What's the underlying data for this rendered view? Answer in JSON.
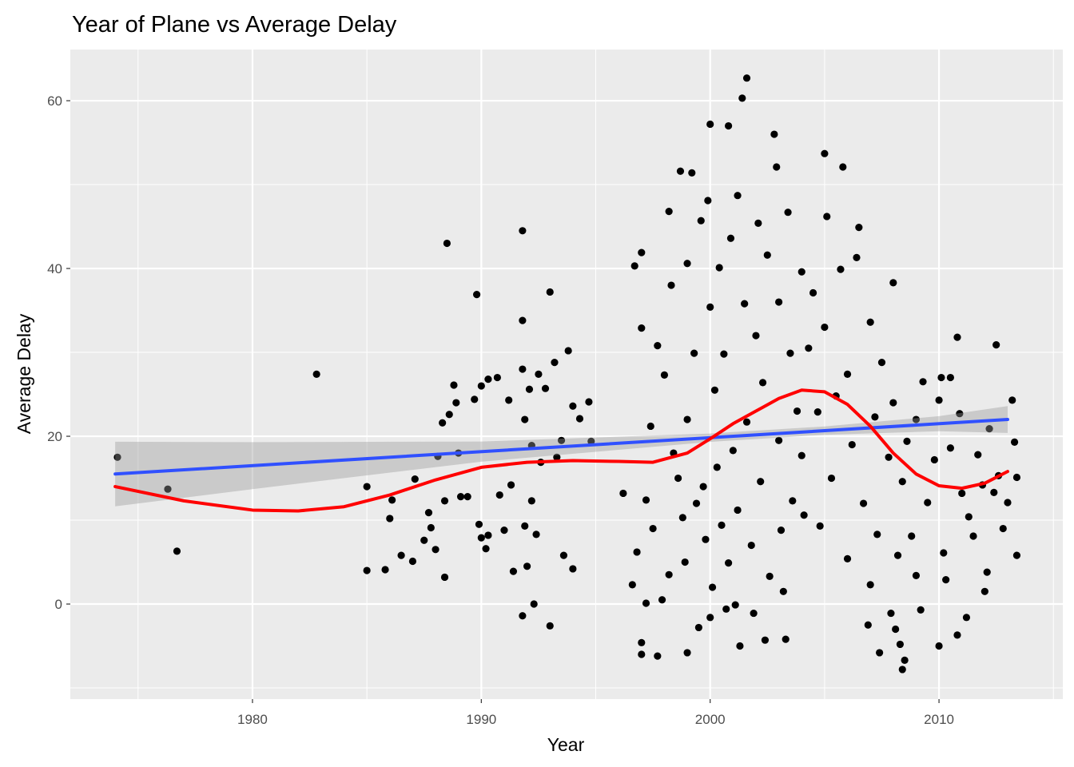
{
  "chart_data": {
    "type": "scatter",
    "title": "Year of Plane vs Average Delay",
    "x_label": "Year",
    "y_label": "Average Delay",
    "xlim": [
      1972.04,
      2015.41
    ],
    "ylim": [
      -11.33,
      66.1
    ],
    "xticks": [
      1980,
      1990,
      2000,
      2010
    ],
    "yticks": [
      0,
      20,
      40,
      60
    ],
    "x_minor_grid": [
      1975,
      1985,
      1995,
      2005,
      2015
    ],
    "y_minor_grid": [
      -10,
      10,
      30,
      50
    ],
    "grid": true,
    "points": {
      "color": "#000000",
      "x": [
        1974.1,
        1976.3,
        1976.7,
        1982.8,
        1985,
        1985,
        1985.8,
        1986,
        1986.1,
        1986.5,
        1987,
        1987.1,
        1987.5,
        1987.7,
        1987.8,
        1988,
        1988.1,
        1988.3,
        1988.4,
        1988.4,
        1988.5,
        1988.6,
        1988.8,
        1988.9,
        1989,
        1989.1,
        1989.4,
        1989.7,
        1989.8,
        1989.9,
        1990,
        1990,
        1990.2,
        1990.3,
        1990.3,
        1990.7,
        1990.8,
        1991,
        1991.2,
        1991.3,
        1991.4,
        1991.8,
        1991.8,
        1991.8,
        1991.8,
        1991.9,
        1991.9,
        1992,
        1992.1,
        1992.2,
        1992.2,
        1992.3,
        1992.4,
        1992.5,
        1992.6,
        1992.8,
        1993,
        1993,
        1993.2,
        1993.3,
        1993.5,
        1993.6,
        1993.8,
        1994,
        1994,
        1994.3,
        1994.7,
        1994.8,
        1996.2,
        1996.6,
        1996.7,
        1996.8,
        1997,
        1997,
        1997,
        1997,
        1997.2,
        1997.2,
        1997.4,
        1997.5,
        1997.7,
        1997.7,
        1997.9,
        1998,
        1998.2,
        1998.2,
        1998.3,
        1998.4,
        1998.6,
        1998.7,
        1998.8,
        1998.9,
        1999,
        1999,
        1999,
        1999.2,
        1999.3,
        1999.4,
        1999.5,
        1999.6,
        1999.7,
        1999.8,
        1999.9,
        2000,
        2000,
        2000,
        2000.1,
        2000.2,
        2000.3,
        2000.4,
        2000.5,
        2000.6,
        2000.7,
        2000.8,
        2000.8,
        2000.9,
        2001,
        2001.1,
        2001.2,
        2001.2,
        2001.3,
        2001.4,
        2001.5,
        2001.6,
        2001.6,
        2001.8,
        2001.9,
        2002,
        2002.1,
        2002.2,
        2002.3,
        2002.4,
        2002.5,
        2002.6,
        2002.8,
        2002.9,
        2003,
        2003,
        2003.1,
        2003.2,
        2003.3,
        2003.4,
        2003.5,
        2003.6,
        2003.8,
        2004,
        2004,
        2004.1,
        2004.3,
        2004.5,
        2004.7,
        2004.8,
        2005,
        2005,
        2005.1,
        2005.3,
        2005.5,
        2005.7,
        2005.8,
        2006,
        2006,
        2006.2,
        2006.4,
        2006.5,
        2006.7,
        2006.9,
        2007,
        2007,
        2007.2,
        2007.3,
        2007.4,
        2007.5,
        2007.8,
        2007.9,
        2008,
        2008,
        2008.1,
        2008.2,
        2008.3,
        2008.4,
        2008.4,
        2008.5,
        2008.6,
        2008.8,
        2009,
        2009,
        2009.2,
        2009.3,
        2009.5,
        2009.8,
        2010,
        2010,
        2010.1,
        2010.2,
        2010.3,
        2010.5,
        2010.5,
        2010.8,
        2010.8,
        2010.9,
        2011,
        2011.2,
        2011.3,
        2011.5,
        2011.7,
        2011.9,
        2012,
        2012.1,
        2012.2,
        2012.4,
        2012.5,
        2012.6,
        2012.8,
        2013,
        2013.2,
        2013.3,
        2013.4,
        2013.4
      ],
      "y": [
        17.5,
        13.7,
        6.3,
        27.4,
        4,
        14,
        4.1,
        10.2,
        12.4,
        5.8,
        5.1,
        14.9,
        7.6,
        10.9,
        9.1,
        6.5,
        17.6,
        21.6,
        12.3,
        3.2,
        43,
        22.6,
        26.1,
        24,
        18,
        12.8,
        12.8,
        24.4,
        36.9,
        9.5,
        7.9,
        26,
        6.6,
        26.8,
        8.2,
        27,
        13,
        8.8,
        24.3,
        14.2,
        3.9,
        -1.4,
        44.5,
        33.8,
        28,
        22,
        9.3,
        4.5,
        25.6,
        12.3,
        18.9,
        0,
        8.3,
        27.4,
        16.9,
        25.7,
        37.2,
        -2.6,
        28.8,
        17.5,
        19.5,
        5.8,
        30.2,
        4.2,
        23.6,
        22.1,
        24.1,
        19.4,
        13.2,
        2.3,
        40.3,
        6.2,
        -6,
        -4.6,
        41.9,
        32.9,
        12.4,
        0.1,
        21.2,
        9,
        -6.2,
        30.8,
        0.5,
        27.3,
        46.8,
        3.5,
        38,
        18,
        15,
        51.6,
        10.3,
        5,
        -5.8,
        40.6,
        22,
        51.4,
        29.9,
        12,
        -2.8,
        45.7,
        14,
        7.7,
        48.1,
        57.2,
        -1.6,
        35.4,
        2,
        25.5,
        16.3,
        40.1,
        9.4,
        29.8,
        -0.6,
        57,
        4.9,
        43.6,
        18.3,
        -0.1,
        48.7,
        11.2,
        -5,
        60.3,
        35.8,
        62.7,
        21.7,
        7,
        -1.1,
        32,
        45.4,
        14.6,
        26.4,
        -4.3,
        41.6,
        3.3,
        56,
        52.1,
        19.5,
        36,
        8.8,
        1.5,
        -4.2,
        46.7,
        29.9,
        12.3,
        23,
        39.6,
        17.7,
        10.6,
        30.5,
        37.1,
        22.9,
        9.3,
        53.7,
        33,
        46.2,
        15,
        24.8,
        39.9,
        52.1,
        5.4,
        27.4,
        19,
        41.3,
        44.9,
        12,
        -2.5,
        33.6,
        2.3,
        22.3,
        8.3,
        -5.8,
        28.8,
        17.5,
        -1.1,
        38.3,
        24,
        -3,
        5.8,
        -4.8,
        -7.8,
        14.6,
        -6.7,
        19.4,
        8.1,
        22,
        3.4,
        -0.7,
        26.5,
        12.1,
        17.2,
        24.3,
        -5,
        27,
        6.1,
        2.9,
        18.6,
        27,
        31.8,
        -3.7,
        22.7,
        13.2,
        -1.6,
        10.4,
        8.1,
        17.8,
        14.2,
        1.5,
        3.8,
        20.9,
        13.3,
        30.9,
        15.3,
        9,
        12.1,
        24.3,
        19.3,
        5.8,
        15.1
      ]
    },
    "band": {
      "color": "#999999",
      "x": [
        1974,
        1980,
        1990,
        2000,
        2005,
        2010,
        2013
      ],
      "lower": [
        11.65,
        13.7,
        16.97,
        19.33,
        20.17,
        20.6,
        20.4
      ],
      "upper": [
        19.35,
        19.3,
        19.37,
        20.33,
        21.17,
        22.4,
        23.6
      ]
    },
    "linear_fit": {
      "color": "#3050ff",
      "x": [
        1974,
        2013
      ],
      "y": [
        15.5,
        22
      ]
    },
    "smooth": {
      "color": "#ff0000",
      "x": [
        1974,
        1977,
        1980,
        1982,
        1984,
        1986,
        1988,
        1990,
        1992,
        1994,
        1996,
        1997.5,
        1999,
        2000,
        2001,
        2002,
        2003,
        2004,
        2005,
        2006,
        2007,
        2008,
        2009,
        2010,
        2011,
        2012,
        2013
      ],
      "y": [
        14,
        12.3,
        11.2,
        11.1,
        11.6,
        13,
        14.8,
        16.3,
        16.9,
        17.1,
        17,
        16.9,
        18,
        19.7,
        21.5,
        23,
        24.5,
        25.5,
        25.3,
        23.8,
        21.2,
        18,
        15.5,
        14.1,
        13.8,
        14.4,
        15.8
      ]
    }
  }
}
